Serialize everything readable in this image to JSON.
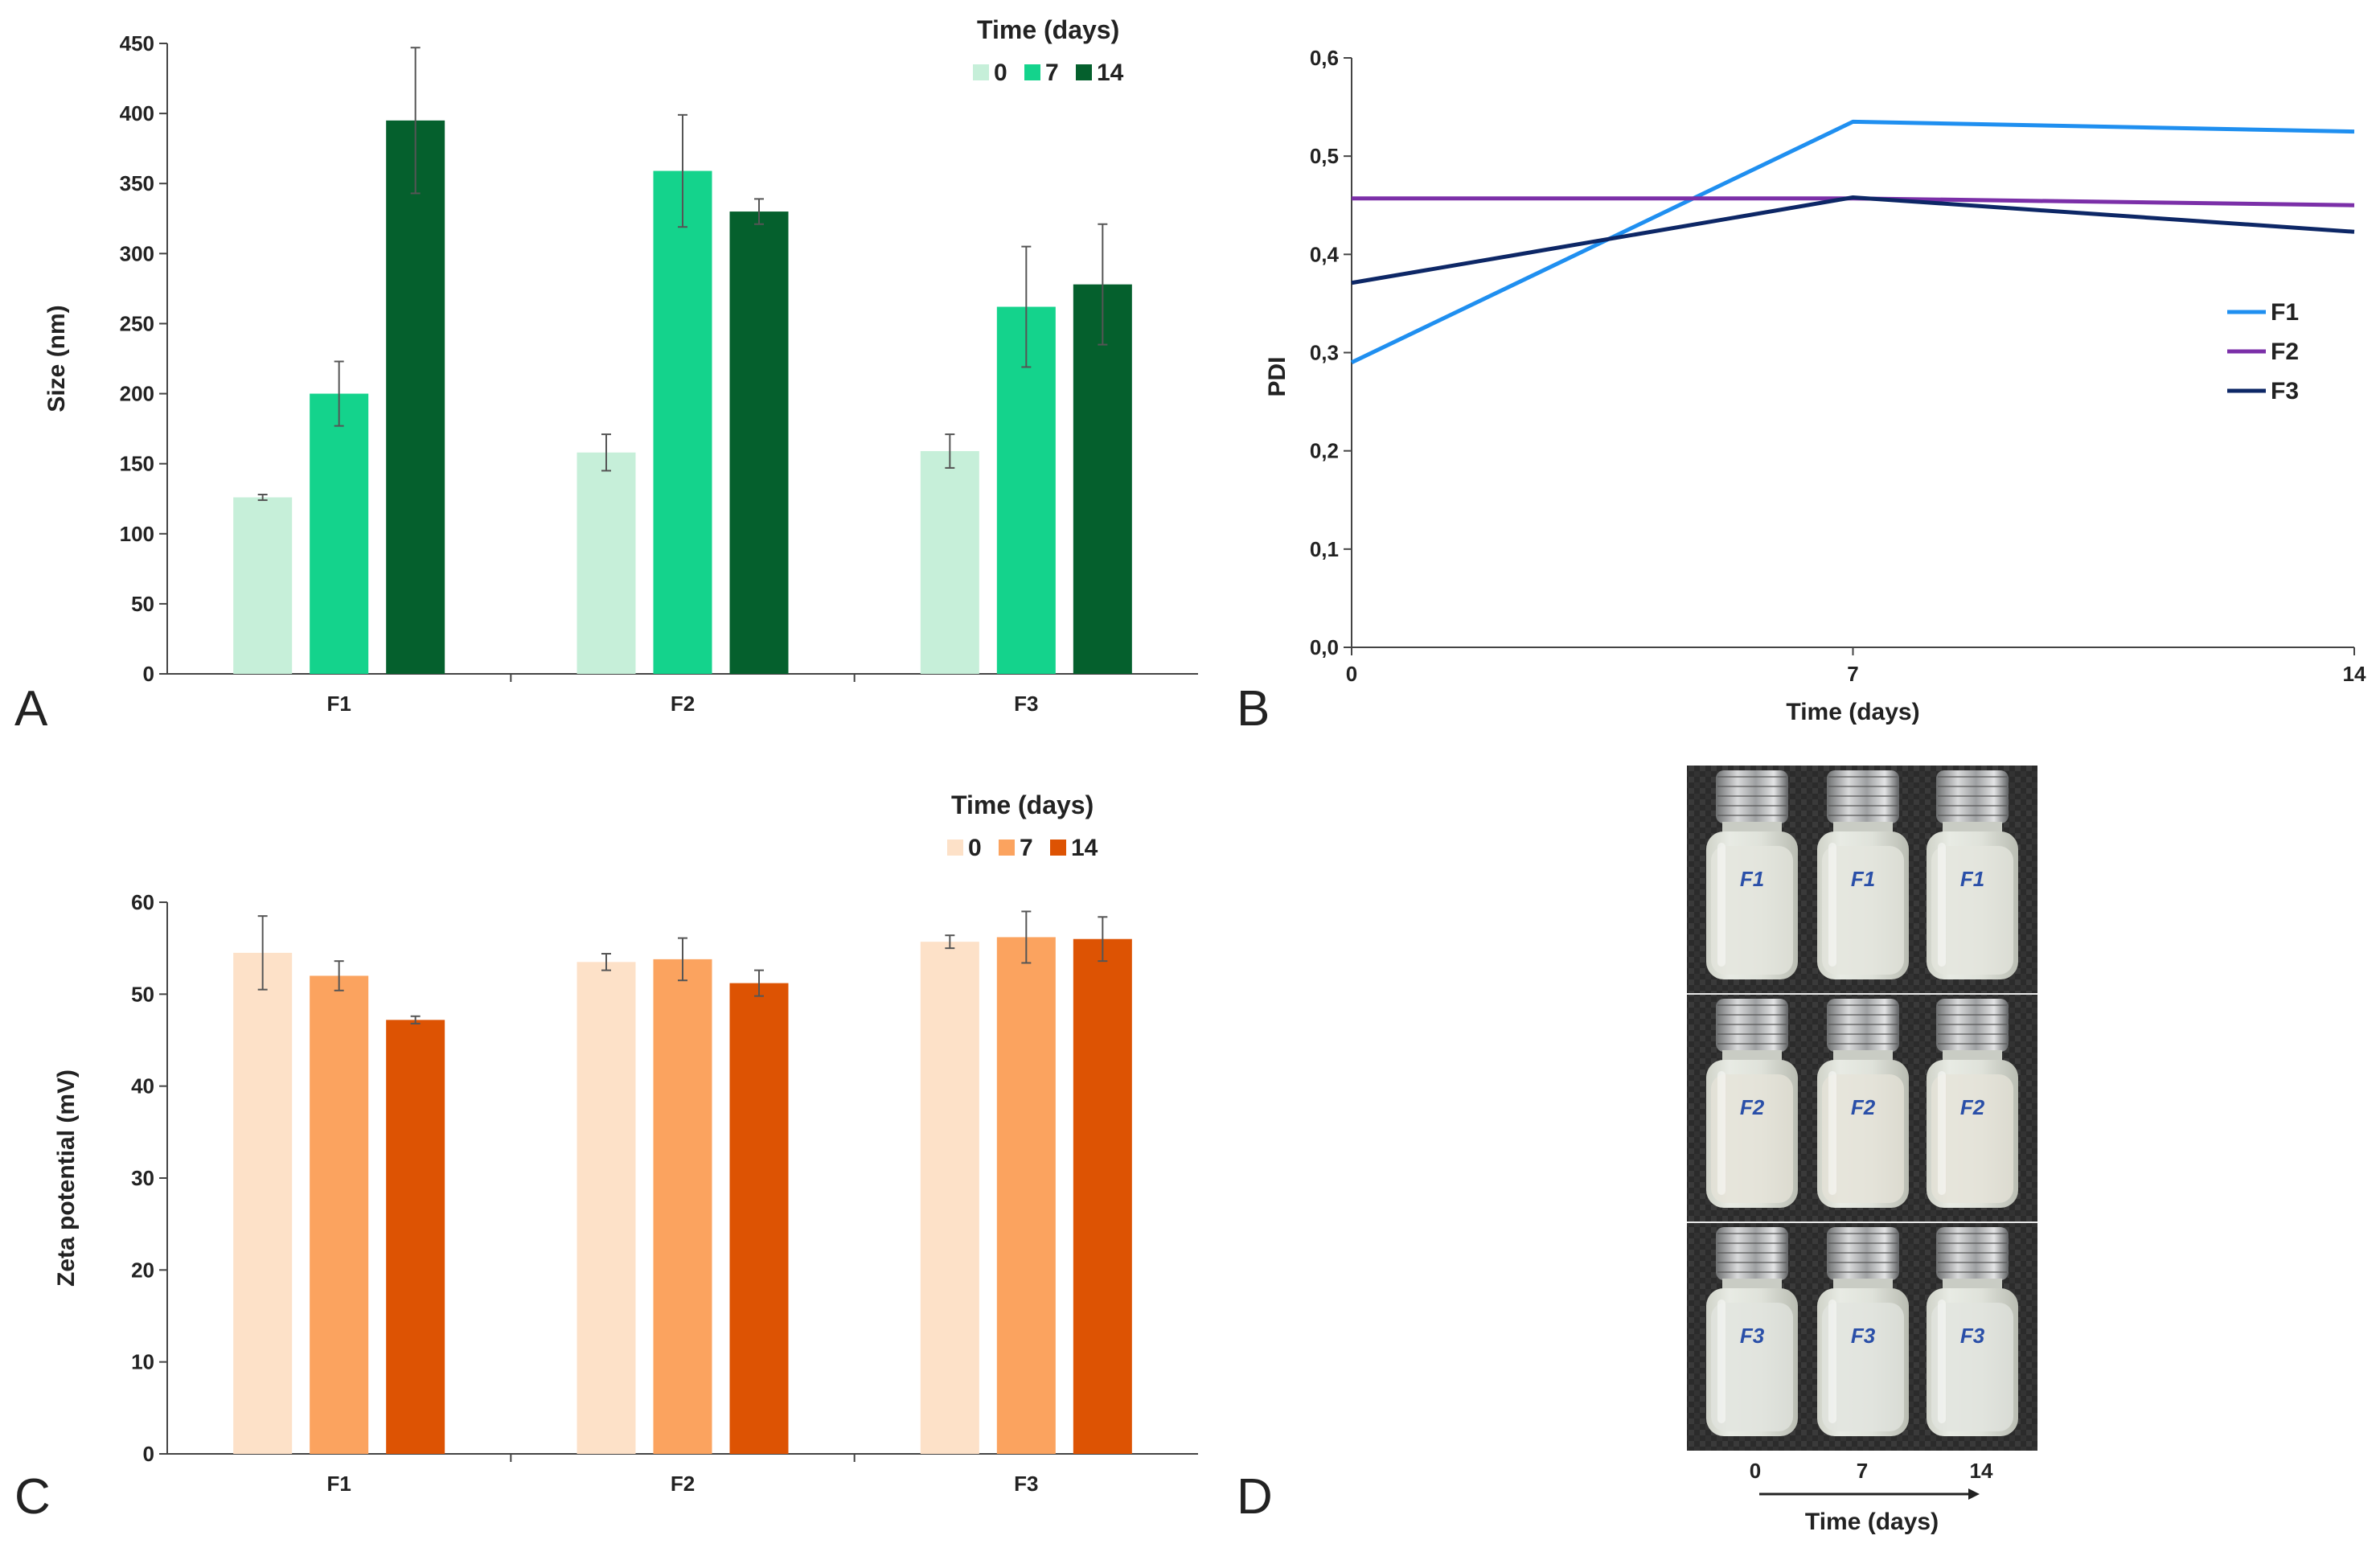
{
  "panel_labels": [
    "A",
    "B",
    "C",
    "D"
  ],
  "chart_data": [
    {
      "panel": "A",
      "type": "bar",
      "title": "",
      "xlabel": "",
      "ylabel": "Size (nm)",
      "ylim": [
        0,
        450
      ],
      "yticks": [
        "0",
        "50",
        "100",
        "150",
        "200",
        "250",
        "300",
        "350",
        "400",
        "450"
      ],
      "categories": [
        "F1",
        "F2",
        "F3"
      ],
      "legend_title": "Time (days)",
      "legend_position": "top-right",
      "series": [
        {
          "name": "0",
          "color": "#c6efd9",
          "values": [
            126,
            158,
            159
          ],
          "errors": [
            2,
            13,
            12
          ]
        },
        {
          "name": "7",
          "color": "#14d38c",
          "values": [
            200,
            359,
            262
          ],
          "errors": [
            23,
            40,
            43
          ]
        },
        {
          "name": "14",
          "color": "#05602d",
          "values": [
            395,
            330,
            278
          ],
          "errors": [
            52,
            9,
            43
          ]
        }
      ]
    },
    {
      "panel": "B",
      "type": "line",
      "title": "",
      "xlabel": "Time (days)",
      "ylabel": "PDI",
      "x": [
        0,
        7,
        14
      ],
      "xticks": [
        "0",
        "7",
        "14"
      ],
      "ylim": [
        0,
        0.6
      ],
      "yticks": [
        "0,0",
        "0,1",
        "0,2",
        "0,3",
        "0,4",
        "0,5",
        "0,6"
      ],
      "legend_position": "center-right",
      "series": [
        {
          "name": "F1",
          "color": "#1f8ff0",
          "values": [
            0.29,
            0.535,
            0.525
          ]
        },
        {
          "name": "F2",
          "color": "#7b2fa8",
          "values": [
            0.457,
            0.457,
            0.45
          ]
        },
        {
          "name": "F3",
          "color": "#0d2766",
          "values": [
            0.371,
            0.458,
            0.423
          ]
        }
      ]
    },
    {
      "panel": "C",
      "type": "bar",
      "title": "",
      "xlabel": "",
      "ylabel": "Zeta potential (mV)",
      "ylim": [
        0,
        60
      ],
      "yticks": [
        "0",
        "10",
        "20",
        "30",
        "40",
        "50",
        "60"
      ],
      "categories": [
        "F1",
        "F2",
        "F3"
      ],
      "legend_title": "Time (days)",
      "legend_position": "top-right",
      "series": [
        {
          "name": "0",
          "color": "#fde1c8",
          "values": [
            54.5,
            53.5,
            55.7
          ],
          "errors": [
            4.0,
            0.9,
            0.7
          ]
        },
        {
          "name": "7",
          "color": "#fba35f",
          "values": [
            52.0,
            53.8,
            56.2
          ],
          "errors": [
            1.6,
            2.3,
            2.8
          ]
        },
        {
          "name": "14",
          "color": "#dd5303",
          "values": [
            47.2,
            51.2,
            56.0
          ],
          "errors": [
            0.4,
            1.4,
            2.4
          ]
        }
      ]
    }
  ],
  "photo": {
    "panel": "D",
    "rows": [
      [
        "F1",
        "F1",
        "F1"
      ],
      [
        "F2",
        "F2",
        "F2"
      ],
      [
        "F3",
        "F3",
        "F3"
      ]
    ],
    "time_labels": [
      "0",
      "7",
      "14"
    ],
    "axis_label": "Time (days)"
  }
}
